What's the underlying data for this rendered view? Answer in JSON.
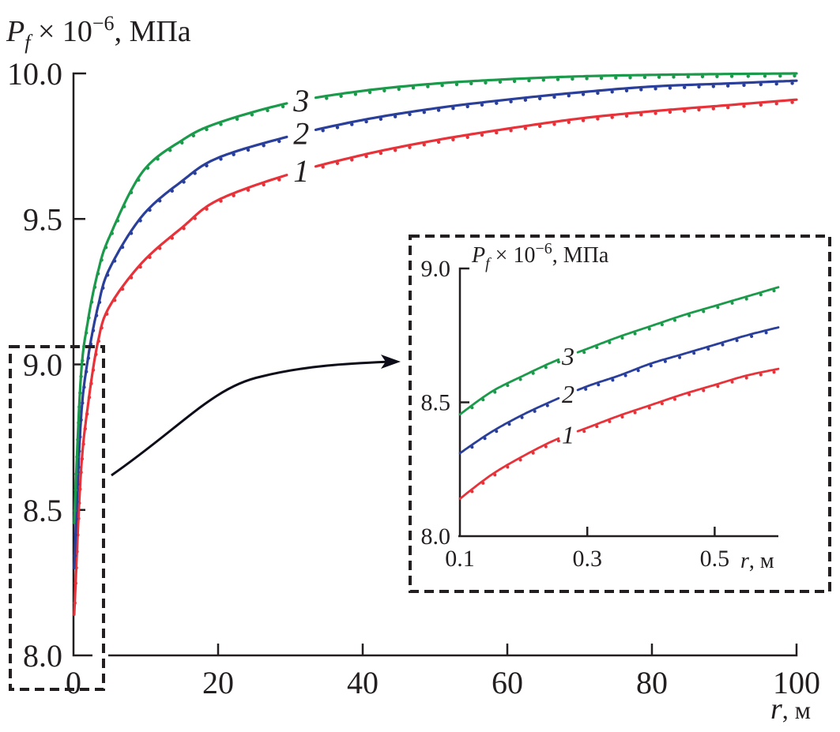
{
  "chart_data": [
    {
      "id": "main",
      "type": "line",
      "title": "",
      "ylabel": "P_f × 10^−6, МПа",
      "ylabel_parts": {
        "var": "P",
        "sub": "f",
        "mult": " × 10",
        "exp": "−6",
        "unit": ", МПа"
      },
      "xlabel": "r, м",
      "xlabel_parts": {
        "var": "r",
        "unit": ", м"
      },
      "xlim": [
        0,
        100
      ],
      "ylim": [
        8.0,
        10.0
      ],
      "xticks": [
        0,
        20,
        40,
        60,
        80,
        100
      ],
      "xtick_labels": [
        "0",
        "20",
        "40",
        "60",
        "80",
        "100"
      ],
      "yticks": [
        8.0,
        8.5,
        9.0,
        9.5,
        10.0
      ],
      "ytick_labels": [
        "8.0",
        "8.5",
        "9.0",
        "9.5",
        "10.0"
      ],
      "grid": false,
      "line_style_note": "solid = analytic, dotted = numeric",
      "x": [
        0.1,
        1,
        2,
        3.4,
        5,
        9.5,
        15,
        20,
        30,
        40,
        50,
        60,
        70,
        80,
        90,
        100
      ],
      "series": [
        {
          "name": "1",
          "color": "#e8323a",
          "label_at_x": 31.5,
          "values": [
            8.14,
            8.62,
            8.86,
            9.08,
            9.2,
            9.35,
            9.47,
            9.565,
            9.655,
            9.72,
            9.77,
            9.81,
            9.845,
            9.87,
            9.89,
            9.91
          ]
        },
        {
          "name": "2",
          "color": "#2a3f9a",
          "label_at_x": 31.5,
          "values": [
            8.3,
            8.8,
            9.02,
            9.2,
            9.33,
            9.51,
            9.63,
            9.71,
            9.785,
            9.84,
            9.88,
            9.91,
            9.935,
            9.955,
            9.965,
            9.975
          ]
        },
        {
          "name": "3",
          "color": "#1a9a4a",
          "label_at_x": 31.5,
          "values": [
            8.455,
            8.95,
            9.15,
            9.32,
            9.44,
            9.66,
            9.77,
            9.83,
            9.9,
            9.94,
            9.965,
            9.98,
            9.99,
            9.995,
            9.998,
            10.0
          ]
        }
      ]
    },
    {
      "id": "inset",
      "type": "line",
      "title": "",
      "ylabel": "P_f × 10^−6, МПа",
      "ylabel_parts": {
        "var": "P",
        "sub": "f",
        "mult": " × 10",
        "exp": "−6",
        "unit": ", МПа"
      },
      "xlabel": "r, м",
      "xlabel_parts": {
        "var": "r",
        "unit": ", м"
      },
      "xlim": [
        0.1,
        0.6
      ],
      "ylim": [
        8.0,
        9.0
      ],
      "xticks": [
        0.1,
        0.3,
        0.5
      ],
      "xtick_labels": [
        "0.1",
        "0.3",
        "0.5"
      ],
      "yticks": [
        8.0,
        8.5,
        9.0
      ],
      "ytick_labels": [
        "8.0",
        "8.5",
        "9.0"
      ],
      "grid": false,
      "x": [
        0.1,
        0.15,
        0.2,
        0.25,
        0.3,
        0.35,
        0.4,
        0.45,
        0.5,
        0.55,
        0.6
      ],
      "series": [
        {
          "name": "1",
          "color": "#e8323a",
          "label_at_x": 0.27,
          "values": [
            8.14,
            8.23,
            8.3,
            8.36,
            8.405,
            8.45,
            8.49,
            8.53,
            8.565,
            8.6,
            8.625
          ]
        },
        {
          "name": "2",
          "color": "#2a3f9a",
          "label_at_x": 0.27,
          "values": [
            8.31,
            8.39,
            8.455,
            8.51,
            8.56,
            8.6,
            8.645,
            8.68,
            8.715,
            8.75,
            8.78
          ]
        },
        {
          "name": "3",
          "color": "#1a9a4a",
          "label_at_x": 0.27,
          "values": [
            8.455,
            8.54,
            8.6,
            8.655,
            8.7,
            8.745,
            8.785,
            8.825,
            8.86,
            8.895,
            8.93
          ]
        }
      ]
    }
  ]
}
